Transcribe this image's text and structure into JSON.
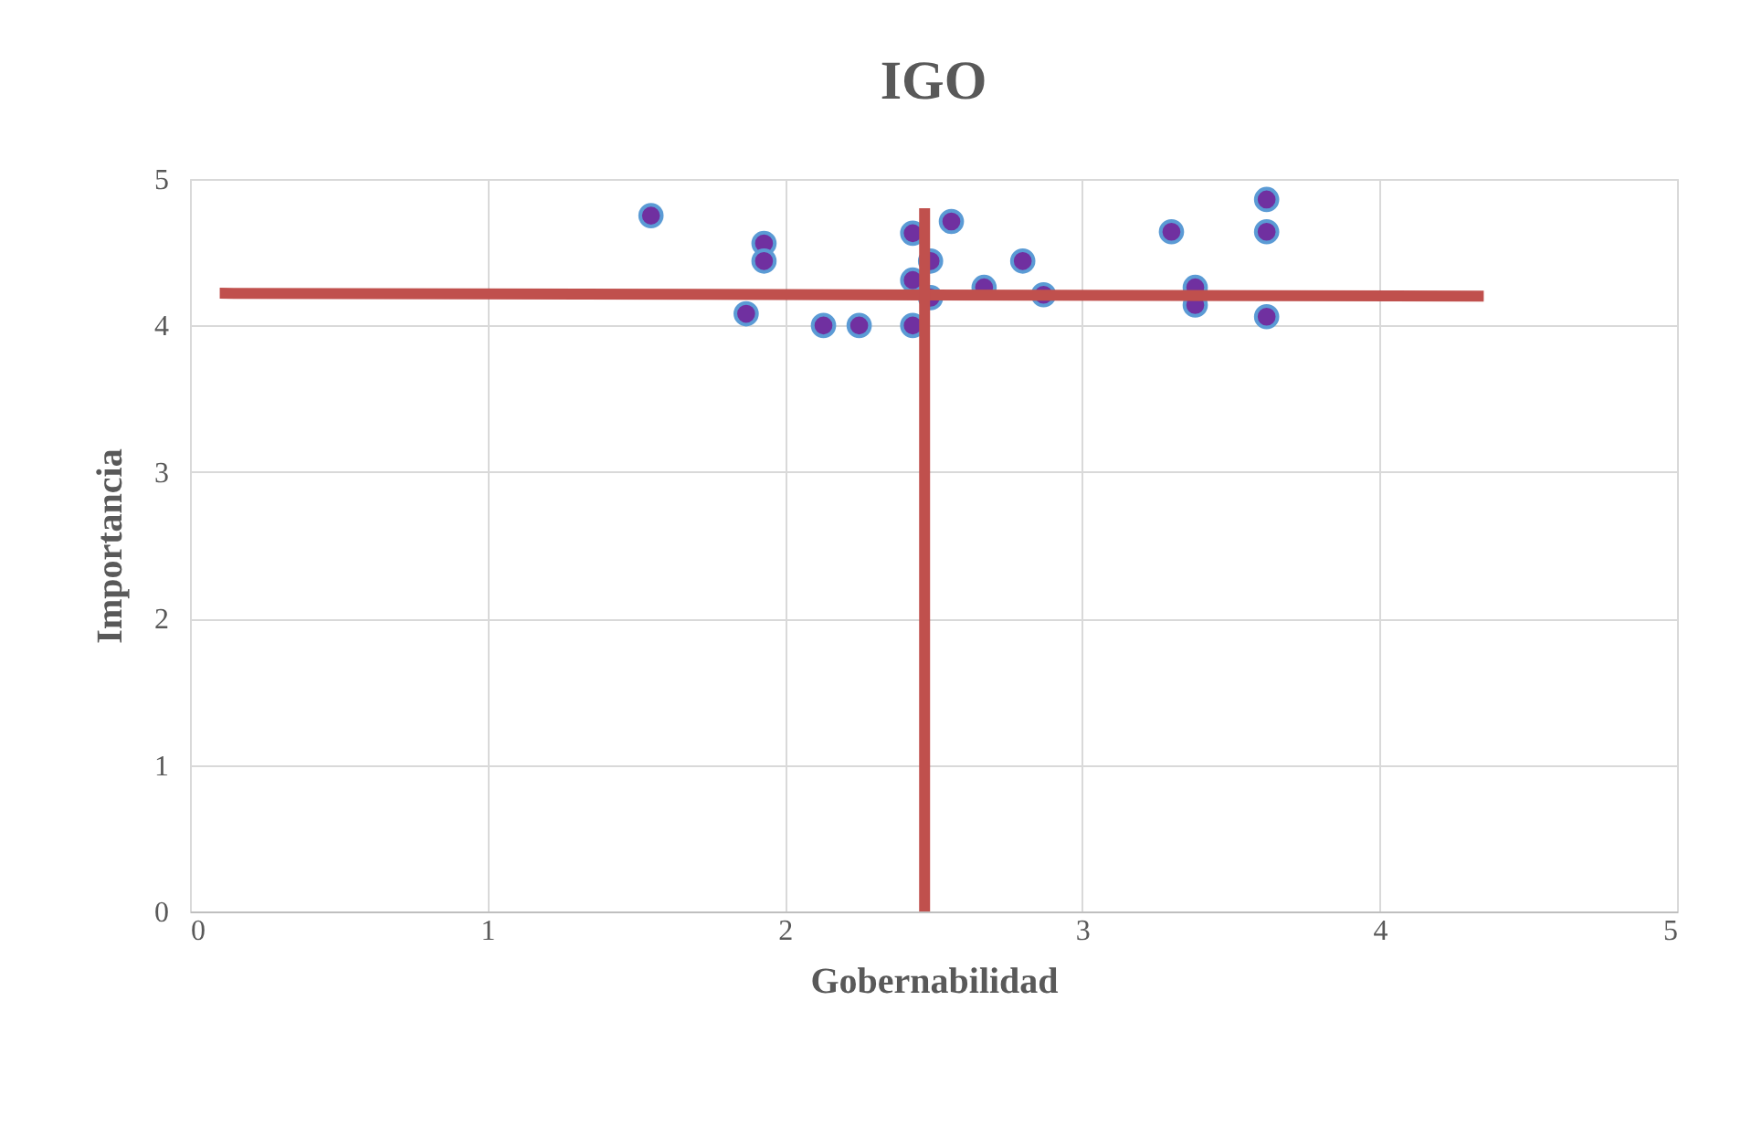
{
  "chart_data": {
    "type": "scatter",
    "title": "IGO",
    "xlabel": "Gobernabilidad",
    "ylabel": "Importancia",
    "xlim": [
      0,
      5
    ],
    "ylim": [
      0,
      5
    ],
    "xticks": [
      0,
      1,
      2,
      3,
      4,
      5
    ],
    "yticks": [
      0,
      1,
      2,
      3,
      4,
      5
    ],
    "grid": true,
    "series": [
      {
        "color": "#7030a0",
        "marker": "circle",
        "x": [
          1.55,
          1.93,
          1.93,
          1.87,
          2.13,
          2.25,
          2.43,
          2.43,
          2.43,
          2.56,
          2.49,
          2.49,
          2.67,
          2.8,
          2.87,
          3.3,
          3.38,
          3.38,
          3.62,
          3.62,
          3.62
        ],
        "values": [
          4.75,
          4.56,
          4.44,
          4.08,
          4.0,
          4.0,
          4.63,
          4.31,
          4.0,
          4.71,
          4.44,
          4.19,
          4.26,
          4.44,
          4.21,
          4.64,
          4.26,
          4.14,
          4.86,
          4.64,
          4.06
        ]
      },
      {
        "type": "line",
        "color": "#c0504d",
        "line_style": "solid",
        "x": [
          0.1,
          4.35
        ],
        "values": [
          4.22,
          4.2
        ]
      },
      {
        "type": "line",
        "color": "#c0504d",
        "line_style": "solid",
        "x": [
          2.47,
          2.47
        ],
        "values": [
          0,
          4.8
        ]
      }
    ]
  }
}
